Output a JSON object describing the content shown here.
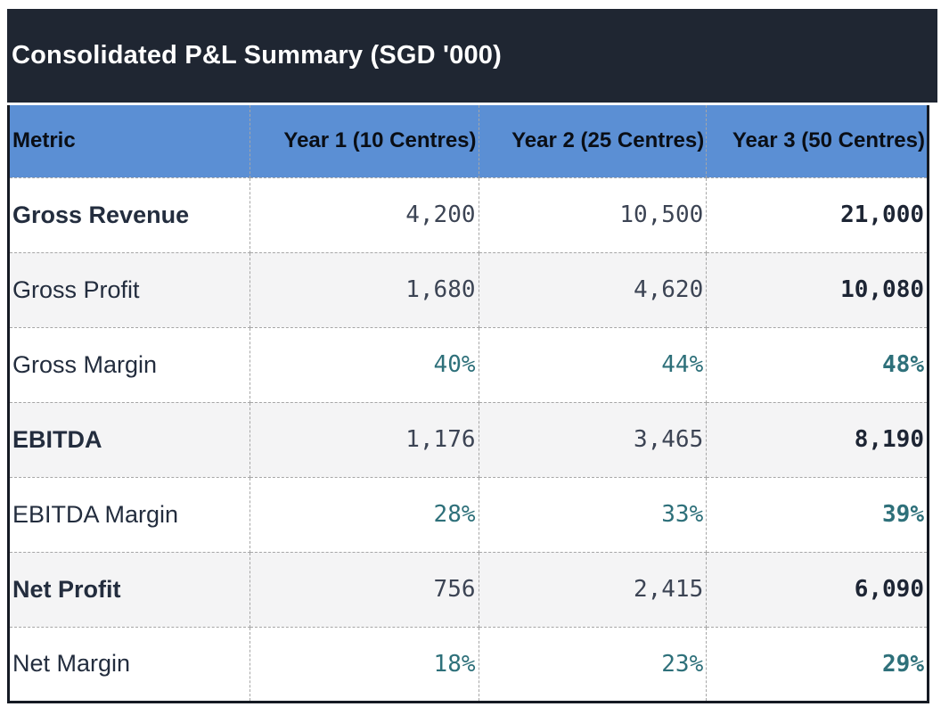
{
  "title": "Consolidated P&L Summary (SGD '000)",
  "table": {
    "columns": [
      "Metric",
      "Year 1 (10 Centres)",
      "Year 2 (25 Centres)",
      "Year 3 (50 Centres)"
    ],
    "rows": [
      {
        "metric": "Gross Revenue",
        "emphasis": true,
        "format": "number",
        "values": [
          "4,200",
          "10,500",
          "21,000"
        ]
      },
      {
        "metric": "Gross Profit",
        "emphasis": false,
        "format": "number",
        "values": [
          "1,680",
          "4,620",
          "10,080"
        ]
      },
      {
        "metric": "Gross Margin",
        "emphasis": false,
        "format": "percent",
        "values": [
          "40%",
          "44%",
          "48%"
        ]
      },
      {
        "metric": "EBITDA",
        "emphasis": true,
        "format": "number",
        "values": [
          "1,176",
          "3,465",
          "8,190"
        ]
      },
      {
        "metric": "EBITDA Margin",
        "emphasis": false,
        "format": "percent",
        "values": [
          "28%",
          "33%",
          "39%"
        ]
      },
      {
        "metric": "Net Profit",
        "emphasis": true,
        "format": "number",
        "values": [
          "756",
          "2,415",
          "6,090"
        ]
      },
      {
        "metric": "Net Margin",
        "emphasis": false,
        "format": "percent",
        "values": [
          "18%",
          "23%",
          "29%"
        ]
      }
    ]
  },
  "colors": {
    "title_bar_bg": "#1f2632",
    "title_text": "#ffffff",
    "header_bg": "#5b8fd4",
    "header_text": "#0a0e15",
    "row_alt_bg": "#f4f4f5",
    "label_text": "#232d3e",
    "number_text": "#3c4454",
    "number_bold_text": "#1d2534",
    "percent_text": "#2e707a",
    "outer_border": "#151a23",
    "grid_dashed": "#a6a6a6"
  }
}
